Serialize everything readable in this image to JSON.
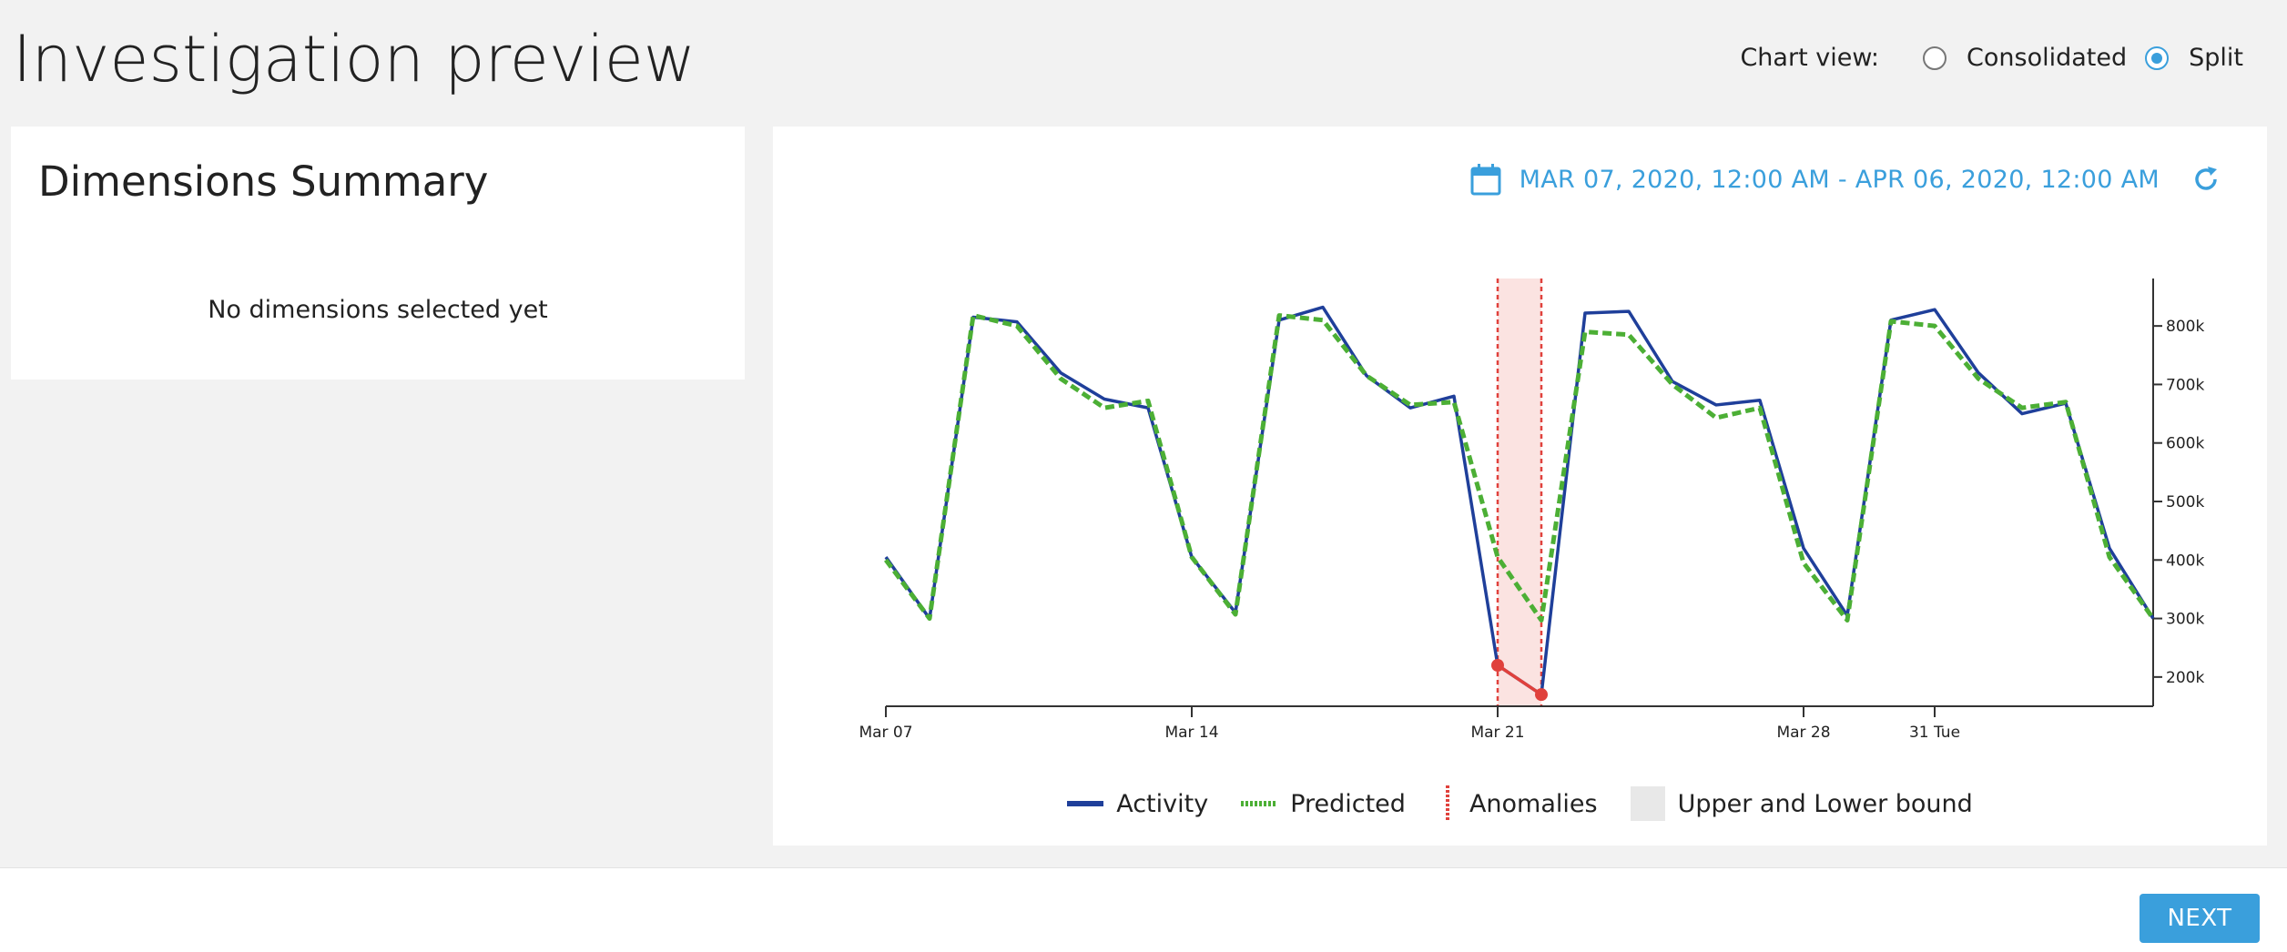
{
  "page": {
    "title": "Investigation preview"
  },
  "chart_view": {
    "label": "Chart view:",
    "options": [
      {
        "label": "Consolidated",
        "selected": false
      },
      {
        "label": "Split",
        "selected": true
      }
    ]
  },
  "dimensions": {
    "title": "Dimensions Summary",
    "empty_text": "No dimensions selected yet"
  },
  "date_range": {
    "text": "MAR 07, 2020, 12:00 AM - APR 06, 2020, 12:00 AM",
    "calendar_icon": "calendar-icon",
    "refresh_icon": "refresh-icon"
  },
  "colors": {
    "accent": "#3a9fdc",
    "activity": "#1f3f9a",
    "predicted": "#4caf35",
    "anomaly": "#e0413c",
    "bound_band": "#fbe3e1"
  },
  "chart_data": {
    "type": "line",
    "x_ticks": [
      "Mar 07",
      "Mar 14",
      "Mar 21",
      "Mar 28",
      "31 Tue"
    ],
    "x_tick_dates": [
      "2020-03-07",
      "2020-03-14",
      "2020-03-21",
      "2020-03-28",
      "2020-03-31"
    ],
    "y_ticks": [
      "200k",
      "300k",
      "400k",
      "500k",
      "600k",
      "700k",
      "800k"
    ],
    "y_tick_values": [
      200000,
      300000,
      400000,
      500000,
      600000,
      700000,
      800000
    ],
    "ylim": [
      150000,
      850000
    ],
    "xlim": [
      "2020-03-07",
      "2020-04-05"
    ],
    "y_axis_side": "right",
    "x": [
      "2020-03-07",
      "2020-03-08",
      "2020-03-09",
      "2020-03-10",
      "2020-03-11",
      "2020-03-12",
      "2020-03-13",
      "2020-03-14",
      "2020-03-15",
      "2020-03-16",
      "2020-03-17",
      "2020-03-18",
      "2020-03-19",
      "2020-03-20",
      "2020-03-21",
      "2020-03-22",
      "2020-03-23",
      "2020-03-24",
      "2020-03-25",
      "2020-03-26",
      "2020-03-27",
      "2020-03-28",
      "2020-03-29",
      "2020-03-30",
      "2020-03-31",
      "2020-04-01",
      "2020-04-02",
      "2020-04-03",
      "2020-04-04",
      "2020-04-05"
    ],
    "series": [
      {
        "name": "Activity",
        "values": [
          405000,
          300000,
          815000,
          807000,
          720000,
          675000,
          660000,
          405000,
          310000,
          810000,
          832000,
          715000,
          660000,
          680000,
          220000,
          170000,
          822000,
          825000,
          705000,
          665000,
          673000,
          420000,
          305000,
          810000,
          828000,
          720000,
          650000,
          668000,
          420000,
          300000
        ]
      },
      {
        "name": "Predicted",
        "values": [
          400000,
          300000,
          818000,
          800000,
          710000,
          660000,
          672000,
          405000,
          307000,
          818000,
          810000,
          715000,
          665000,
          670000,
          405000,
          297000,
          790000,
          785000,
          700000,
          643000,
          660000,
          395000,
          297000,
          808000,
          800000,
          710000,
          660000,
          670000,
          405000,
          300000
        ]
      }
    ],
    "anomalies": [
      {
        "x": "2020-03-21",
        "value": 220000
      },
      {
        "x": "2020-03-22",
        "value": 170000
      }
    ],
    "bound_band": {
      "start": "2020-03-21",
      "end": "2020-03-22"
    },
    "legend": [
      {
        "label": "Activity",
        "icon": "solid-line"
      },
      {
        "label": "Predicted",
        "icon": "dotted-line"
      },
      {
        "label": "Anomalies",
        "icon": "dashed-vertical"
      },
      {
        "label": "Upper and Lower bound",
        "icon": "band-swatch"
      }
    ],
    "legend_placement": "bottom-center",
    "grid": false
  },
  "footer": {
    "next_label": "NEXT"
  }
}
